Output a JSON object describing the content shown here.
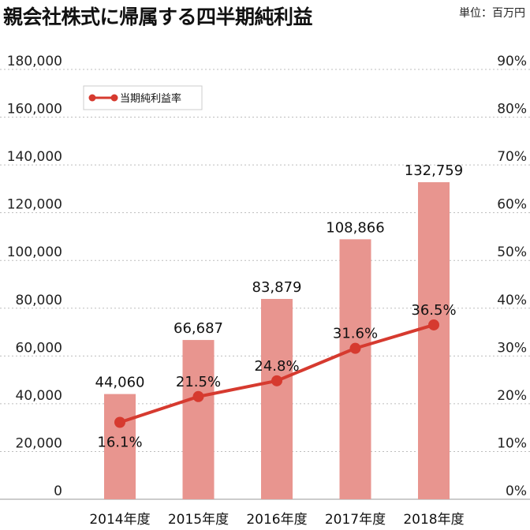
{
  "title": "親会社株式に帰属する四半期純利益",
  "unit": "単位：百万円",
  "chart_data": {
    "type": "bar",
    "categories": [
      "2014年度",
      "2015年度",
      "2016年度",
      "2017年度",
      "2018年度"
    ],
    "series": [
      {
        "name": "",
        "type": "bar",
        "axis": "left",
        "values": [
          44060,
          66687,
          83879,
          108866,
          132759
        ],
        "labels": [
          "44,060",
          "66,687",
          "83,879",
          "108,866",
          "132,759"
        ],
        "color": "#e8958f"
      },
      {
        "name": "当期純利益率",
        "type": "line",
        "axis": "right",
        "values": [
          16.1,
          21.5,
          24.8,
          31.6,
          36.5
        ],
        "labels": [
          "16.1%",
          "21.5%",
          "24.8%",
          "31.6%",
          "36.5%"
        ],
        "color": "#d63a2f"
      }
    ],
    "y_left": {
      "range": [
        0,
        180000
      ],
      "ticks": [
        "0",
        "20,000",
        "40,000",
        "60,000",
        "80,000",
        "100,000",
        "120,000",
        "140,000",
        "160,000",
        "180,000"
      ]
    },
    "y_right": {
      "range": [
        0,
        90
      ],
      "ticks": [
        "0%",
        "10%",
        "20%",
        "30%",
        "40%",
        "50%",
        "60%",
        "70%",
        "80%",
        "90%"
      ]
    },
    "grid": true,
    "legend_position": "top-left"
  }
}
